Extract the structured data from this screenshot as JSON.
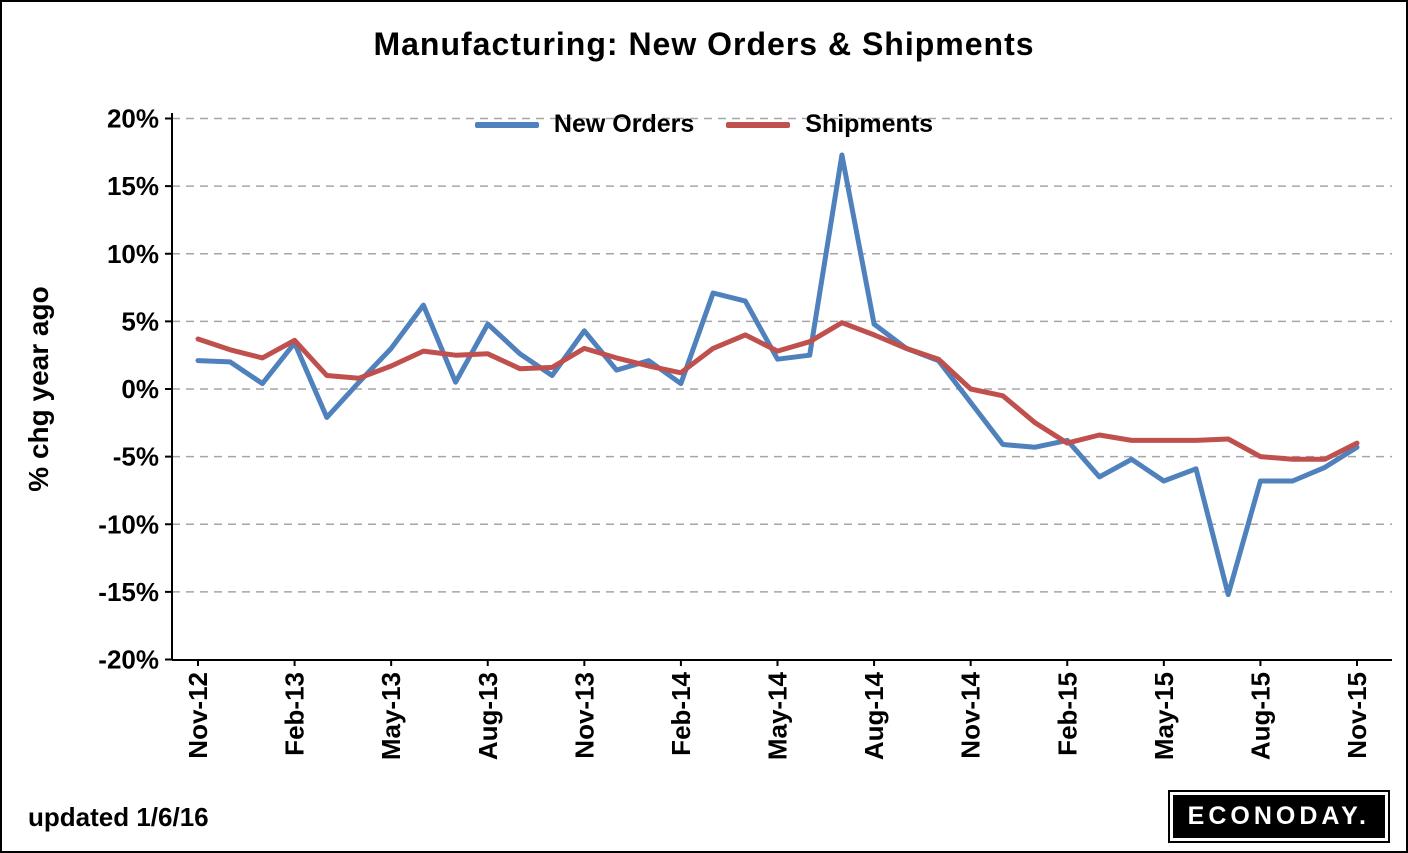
{
  "chart_data": {
    "type": "line",
    "title": "Manufacturing: New Orders & Shipments",
    "ylabel": "% chg year ago",
    "ylim": [
      -20,
      20
    ],
    "ytick_step": 5,
    "ytick_labels": [
      "20%",
      "15%",
      "10%",
      "5%",
      "0%",
      "-5%",
      "-10%",
      "-15%",
      "-20%"
    ],
    "x_tick_labels": [
      "Nov-12",
      "Feb-13",
      "May-13",
      "Aug-13",
      "Nov-13",
      "Feb-14",
      "May-14",
      "Aug-14",
      "Nov-14",
      "Feb-15",
      "May-15",
      "Aug-15",
      "Nov-15"
    ],
    "x_tick_every": 3,
    "grid": "horizontal-dashed",
    "legend_position": "top-center",
    "series": [
      {
        "name": "New Orders",
        "color": "#4F81BD",
        "values": [
          2.1,
          2.0,
          0.4,
          3.4,
          -2.1,
          0.5,
          3.0,
          6.2,
          0.5,
          4.8,
          2.6,
          1.0,
          4.3,
          1.4,
          2.1,
          0.4,
          7.1,
          6.5,
          2.2,
          2.5,
          17.3,
          4.8,
          3.0,
          2.1,
          -1.0,
          -4.1,
          -4.3,
          -3.8,
          -6.5,
          -5.2,
          -6.8,
          -5.9,
          -15.2,
          -6.8,
          -6.8,
          -5.8,
          -4.3
        ]
      },
      {
        "name": "Shipments",
        "color": "#C0504D",
        "values": [
          3.7,
          2.9,
          2.3,
          3.6,
          1.0,
          0.8,
          1.7,
          2.8,
          2.5,
          2.6,
          1.5,
          1.6,
          3.0,
          2.3,
          1.7,
          1.2,
          3.0,
          4.0,
          2.8,
          3.5,
          4.9,
          4.0,
          3.0,
          2.2,
          0.0,
          -0.5,
          -2.5,
          -4.0,
          -3.4,
          -3.8,
          -3.8,
          -3.8,
          -3.7,
          -5.0,
          -5.2,
          -5.2,
          -4.0
        ]
      }
    ]
  },
  "footer": {
    "updated": "updated 1/6/16",
    "logo_text": "ECONODAY."
  }
}
